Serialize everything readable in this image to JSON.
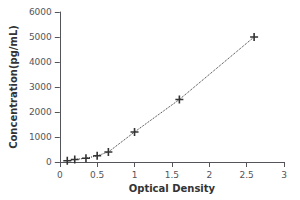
{
  "chart_data": {
    "type": "line",
    "xlabel": "Optical Density",
    "ylabel": "Concentration(pg/mL)",
    "x": [
      0.1,
      0.2,
      0.35,
      0.5,
      0.65,
      1.0,
      1.6,
      2.6
    ],
    "values": [
      50,
      100,
      150,
      250,
      400,
      1200,
      2500,
      5000
    ],
    "xlim": [
      0,
      3
    ],
    "ylim": [
      0,
      6000
    ],
    "xticks": [
      0,
      0.5,
      1,
      1.5,
      2,
      2.5,
      3
    ],
    "yticks": [
      0,
      1000,
      2000,
      3000,
      4000,
      5000,
      6000
    ],
    "color": "#333333",
    "marker": "plus",
    "line_style": "dotted",
    "grid": false
  }
}
